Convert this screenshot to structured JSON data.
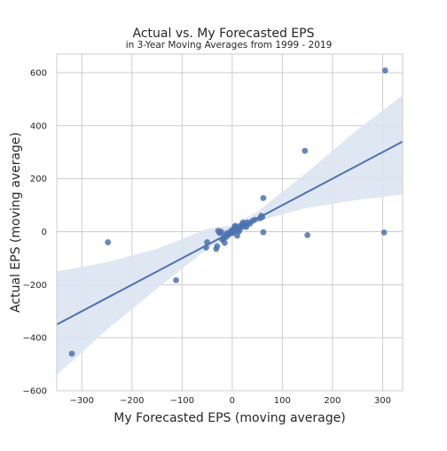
{
  "chart_data": {
    "type": "scatter",
    "title": "Actual vs. My Forecasted EPS",
    "subtitle": "in 3-Year Moving Averages from 1999 - 2019",
    "xlabel": "My Forecasted EPS (moving average)",
    "ylabel": "Actual EPS (moving average)",
    "xlim": [
      -350,
      340
    ],
    "ylim": [
      -600,
      670
    ],
    "xticks": [
      -300,
      -200,
      -100,
      0,
      100,
      200,
      300
    ],
    "yticks": [
      -600,
      -400,
      -200,
      0,
      200,
      400,
      600
    ],
    "grid": true,
    "colors": {
      "points": "#4c72b0",
      "regression_line": "#4c72b0",
      "confidence_band": "#dce4f2",
      "grid": "#cccccc",
      "text": "#262626"
    },
    "regression_line": {
      "x": [
        -350,
        340
      ],
      "y": [
        -350,
        340
      ]
    },
    "confidence_band": {
      "x": [
        -350,
        -250,
        -150,
        -50,
        0,
        50,
        150,
        250,
        340
      ],
      "lower": [
        -540,
        -370,
        -215,
        -65,
        -10,
        40,
        90,
        120,
        140
      ],
      "upper": [
        -150,
        -115,
        -65,
        10,
        25,
        75,
        225,
        385,
        515
      ]
    },
    "points": [
      {
        "x": 305,
        "y": 608
      },
      {
        "x": 145,
        "y": 305
      },
      {
        "x": 303,
        "y": -3
      },
      {
        "x": 150,
        "y": -13
      },
      {
        "x": 62,
        "y": 127
      },
      {
        "x": 62,
        "y": -2
      },
      {
        "x": -248,
        "y": -40
      },
      {
        "x": -112,
        "y": -183
      },
      {
        "x": -320,
        "y": -460
      },
      {
        "x": 60,
        "y": 55
      },
      {
        "x": 58,
        "y": 60
      },
      {
        "x": 55,
        "y": 50
      },
      {
        "x": 40,
        "y": 40
      },
      {
        "x": 35,
        "y": 30
      },
      {
        "x": 30,
        "y": 35
      },
      {
        "x": 25,
        "y": 22
      },
      {
        "x": 22,
        "y": 35
      },
      {
        "x": 20,
        "y": 28
      },
      {
        "x": 18,
        "y": 15
      },
      {
        "x": 15,
        "y": 20
      },
      {
        "x": 12,
        "y": 10
      },
      {
        "x": 10,
        "y": 5
      },
      {
        "x": 8,
        "y": 12
      },
      {
        "x": 5,
        "y": 18
      },
      {
        "x": 3,
        "y": 8
      },
      {
        "x": 2,
        "y": -5
      },
      {
        "x": 0,
        "y": 0
      },
      {
        "x": -2,
        "y": 4
      },
      {
        "x": -5,
        "y": -8
      },
      {
        "x": -8,
        "y": -12
      },
      {
        "x": -10,
        "y": -5
      },
      {
        "x": -12,
        "y": -20
      },
      {
        "x": -15,
        "y": -15
      },
      {
        "x": -18,
        "y": -25
      },
      {
        "x": -20,
        "y": -30
      },
      {
        "x": -22,
        "y": 0
      },
      {
        "x": -25,
        "y": -5
      },
      {
        "x": -28,
        "y": 3
      },
      {
        "x": -30,
        "y": -55
      },
      {
        "x": -32,
        "y": -65
      },
      {
        "x": -50,
        "y": -40
      },
      {
        "x": -52,
        "y": -60
      },
      {
        "x": -15,
        "y": -42
      },
      {
        "x": 10,
        "y": -15
      },
      {
        "x": 6,
        "y": 22
      },
      {
        "x": 14,
        "y": 2
      },
      {
        "x": 28,
        "y": 18
      },
      {
        "x": 45,
        "y": 45
      }
    ]
  }
}
